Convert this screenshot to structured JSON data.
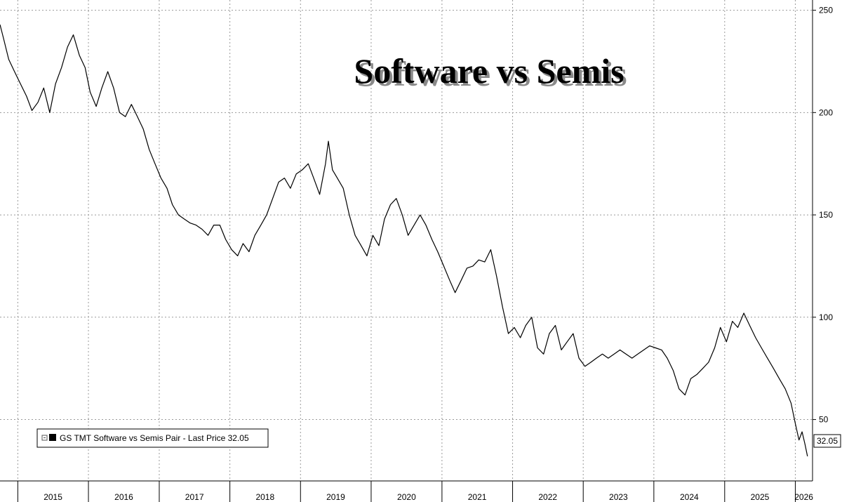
{
  "chart_data": {
    "type": "line",
    "title": "Software vs Semis",
    "xlabel": "",
    "ylabel": "",
    "x_tick_labels": [
      "2015",
      "2016",
      "2017",
      "2018",
      "2019",
      "2020",
      "2021",
      "2022",
      "2023",
      "2024",
      "2025",
      "2026"
    ],
    "y_ticks": [
      50,
      100,
      150,
      200,
      250
    ],
    "ylim": [
      20,
      255
    ],
    "xlim": [
      "2014-10-01",
      "2026-03-31"
    ],
    "grid": true,
    "legend_position": "bottom-left",
    "last_price": 32.05,
    "last_price_label": "32.05",
    "series": [
      {
        "name": "GS TMT Software vs Semis Pair - Last Price 32.05",
        "color": "#000000",
        "points": [
          [
            "2014-10-01",
            243
          ],
          [
            "2014-10-20",
            236
          ],
          [
            "2014-11-15",
            226
          ],
          [
            "2014-12-15",
            220
          ],
          [
            "2015-01-15",
            214
          ],
          [
            "2015-02-15",
            208
          ],
          [
            "2015-03-15",
            201
          ],
          [
            "2015-04-15",
            205
          ],
          [
            "2015-05-15",
            212
          ],
          [
            "2015-06-15",
            200
          ],
          [
            "2015-07-15",
            214
          ],
          [
            "2015-08-15",
            222
          ],
          [
            "2015-09-15",
            232
          ],
          [
            "2015-10-15",
            238
          ],
          [
            "2015-11-15",
            228
          ],
          [
            "2015-12-15",
            222
          ],
          [
            "2016-01-10",
            210
          ],
          [
            "2016-02-10",
            203
          ],
          [
            "2016-03-10",
            212
          ],
          [
            "2016-04-10",
            220
          ],
          [
            "2016-05-10",
            212
          ],
          [
            "2016-06-10",
            200
          ],
          [
            "2016-07-10",
            198
          ],
          [
            "2016-08-10",
            204
          ],
          [
            "2016-09-10",
            198
          ],
          [
            "2016-10-10",
            192
          ],
          [
            "2016-11-10",
            182
          ],
          [
            "2016-12-10",
            175
          ],
          [
            "2017-01-10",
            168
          ],
          [
            "2017-02-10",
            163
          ],
          [
            "2017-03-10",
            155
          ],
          [
            "2017-04-10",
            150
          ],
          [
            "2017-05-10",
            148
          ],
          [
            "2017-06-10",
            146
          ],
          [
            "2017-07-10",
            145
          ],
          [
            "2017-08-10",
            143
          ],
          [
            "2017-09-10",
            140
          ],
          [
            "2017-10-10",
            145
          ],
          [
            "2017-11-10",
            145
          ],
          [
            "2017-12-10",
            138
          ],
          [
            "2018-01-10",
            133
          ],
          [
            "2018-02-10",
            130
          ],
          [
            "2018-03-10",
            136
          ],
          [
            "2018-04-10",
            132
          ],
          [
            "2018-05-10",
            140
          ],
          [
            "2018-06-10",
            145
          ],
          [
            "2018-07-10",
            150
          ],
          [
            "2018-08-10",
            158
          ],
          [
            "2018-09-10",
            166
          ],
          [
            "2018-10-10",
            168
          ],
          [
            "2018-11-10",
            163
          ],
          [
            "2018-12-10",
            170
          ],
          [
            "2019-01-10",
            172
          ],
          [
            "2019-02-10",
            175
          ],
          [
            "2019-03-10",
            168
          ],
          [
            "2019-04-10",
            160
          ],
          [
            "2019-05-10",
            175
          ],
          [
            "2019-05-25",
            186
          ],
          [
            "2019-06-15",
            172
          ],
          [
            "2019-07-10",
            168
          ],
          [
            "2019-08-10",
            163
          ],
          [
            "2019-09-10",
            150
          ],
          [
            "2019-10-10",
            140
          ],
          [
            "2019-11-10",
            135
          ],
          [
            "2019-12-10",
            130
          ],
          [
            "2020-01-10",
            140
          ],
          [
            "2020-02-10",
            135
          ],
          [
            "2020-03-10",
            148
          ],
          [
            "2020-04-10",
            155
          ],
          [
            "2020-05-10",
            158
          ],
          [
            "2020-06-10",
            150
          ],
          [
            "2020-07-10",
            140
          ],
          [
            "2020-08-10",
            145
          ],
          [
            "2020-09-10",
            150
          ],
          [
            "2020-10-10",
            145
          ],
          [
            "2020-11-10",
            138
          ],
          [
            "2020-12-10",
            132
          ],
          [
            "2021-01-10",
            125
          ],
          [
            "2021-02-10",
            118
          ],
          [
            "2021-03-10",
            112
          ],
          [
            "2021-04-10",
            118
          ],
          [
            "2021-05-10",
            124
          ],
          [
            "2021-06-10",
            125
          ],
          [
            "2021-07-10",
            128
          ],
          [
            "2021-08-10",
            127
          ],
          [
            "2021-09-10",
            133
          ],
          [
            "2021-10-10",
            120
          ],
          [
            "2021-11-10",
            105
          ],
          [
            "2021-12-10",
            92
          ],
          [
            "2022-01-10",
            95
          ],
          [
            "2022-02-10",
            90
          ],
          [
            "2022-03-10",
            96
          ],
          [
            "2022-04-10",
            100
          ],
          [
            "2022-05-10",
            85
          ],
          [
            "2022-06-10",
            82
          ],
          [
            "2022-07-10",
            92
          ],
          [
            "2022-08-10",
            96
          ],
          [
            "2022-09-10",
            84
          ],
          [
            "2022-10-10",
            88
          ],
          [
            "2022-11-10",
            92
          ],
          [
            "2022-12-10",
            80
          ],
          [
            "2023-01-10",
            76
          ],
          [
            "2023-02-10",
            78
          ],
          [
            "2023-03-10",
            80
          ],
          [
            "2023-04-10",
            82
          ],
          [
            "2023-05-10",
            80
          ],
          [
            "2023-06-10",
            82
          ],
          [
            "2023-07-10",
            84
          ],
          [
            "2023-08-10",
            82
          ],
          [
            "2023-09-10",
            80
          ],
          [
            "2023-10-10",
            82
          ],
          [
            "2023-11-10",
            84
          ],
          [
            "2023-12-10",
            86
          ],
          [
            "2024-01-10",
            85
          ],
          [
            "2024-02-10",
            84
          ],
          [
            "2024-03-10",
            80
          ],
          [
            "2024-04-10",
            74
          ],
          [
            "2024-05-10",
            65
          ],
          [
            "2024-06-10",
            62
          ],
          [
            "2024-07-10",
            70
          ],
          [
            "2024-08-10",
            72
          ],
          [
            "2024-09-10",
            75
          ],
          [
            "2024-10-10",
            78
          ],
          [
            "2024-11-10",
            85
          ],
          [
            "2024-12-10",
            95
          ],
          [
            "2025-01-10",
            88
          ],
          [
            "2025-02-10",
            98
          ],
          [
            "2025-03-10",
            95
          ],
          [
            "2025-04-10",
            102
          ],
          [
            "2025-05-10",
            96
          ],
          [
            "2025-06-10",
            90
          ],
          [
            "2025-07-10",
            85
          ],
          [
            "2025-08-10",
            80
          ],
          [
            "2025-09-10",
            75
          ],
          [
            "2025-10-10",
            70
          ],
          [
            "2025-11-10",
            65
          ],
          [
            "2025-12-10",
            58
          ],
          [
            "2026-01-01",
            48
          ],
          [
            "2026-01-20",
            40
          ],
          [
            "2026-02-05",
            44
          ],
          [
            "2026-02-20",
            38
          ],
          [
            "2026-03-05",
            32.05
          ]
        ]
      }
    ]
  }
}
